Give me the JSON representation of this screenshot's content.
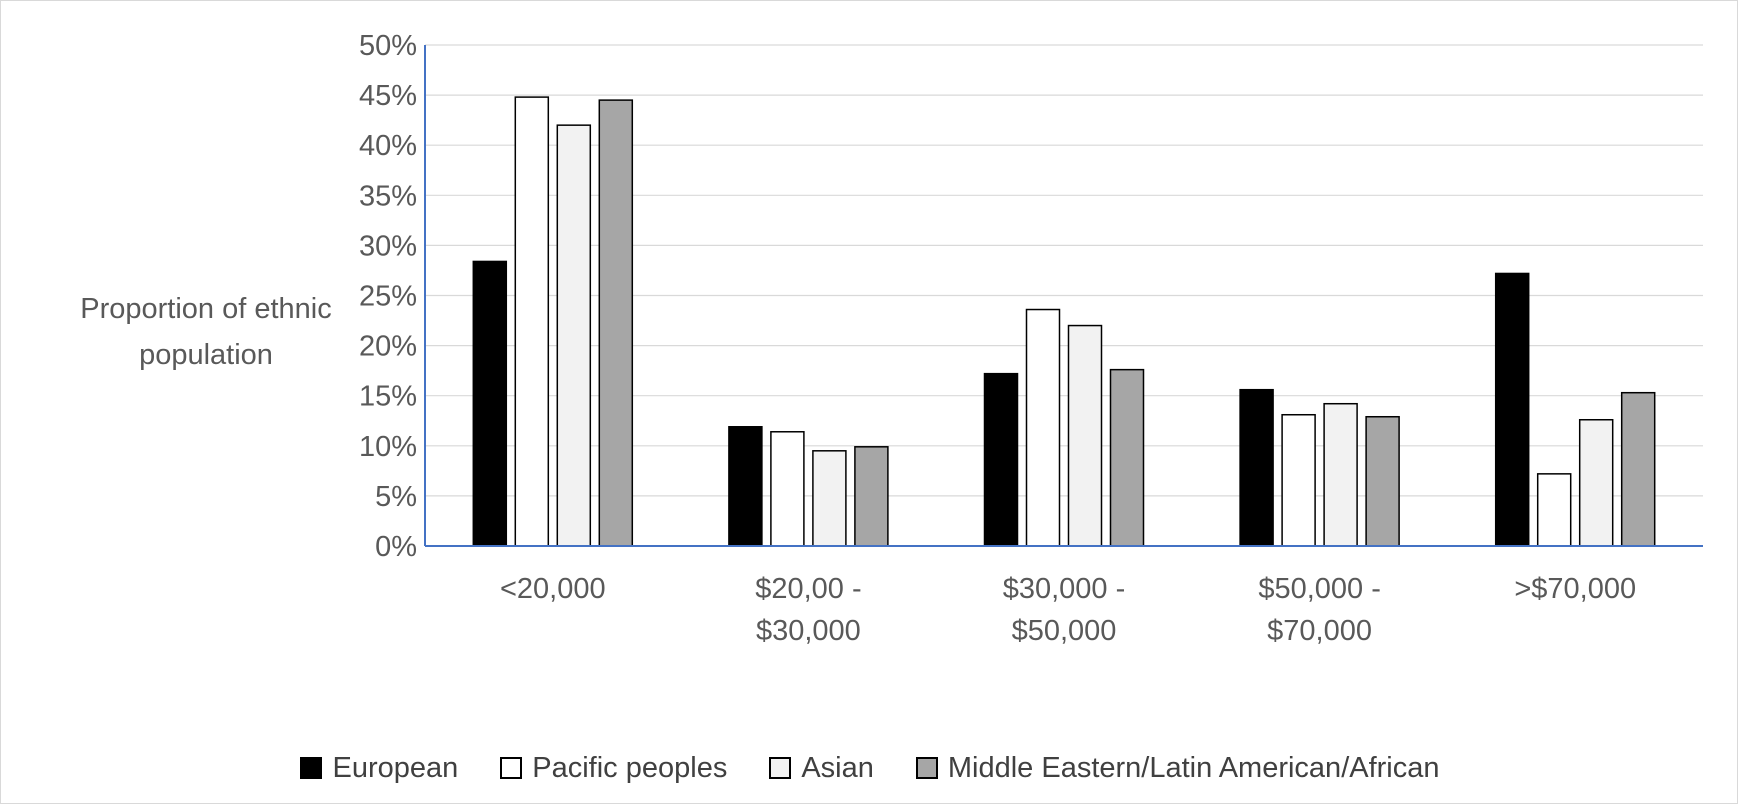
{
  "colors": {
    "European": "#000000",
    "Pacific peoples": "#ffffff",
    "Asian": "#f2f2f2",
    "Middle Eastern/Latin American/African": "#a6a6a6",
    "axis": "#4472c4",
    "grid": "#d9d9d9",
    "text": "#595959"
  },
  "chart_data": {
    "type": "bar",
    "title": "",
    "ylabel_lines": [
      "Proportion of ethnic",
      "population"
    ],
    "xlabel": "",
    "categories": [
      [
        "<20,000"
      ],
      [
        "$20,00 -",
        "$30,000"
      ],
      [
        "$30,000 -",
        "$50,000"
      ],
      [
        "$50,000 -",
        "$70,000"
      ],
      [
        ">$70,000"
      ]
    ],
    "series": [
      {
        "name": "European",
        "values": [
          28.4,
          11.9,
          17.2,
          15.6,
          27.2
        ]
      },
      {
        "name": "Pacific peoples",
        "values": [
          44.8,
          11.4,
          23.6,
          13.1,
          7.2
        ]
      },
      {
        "name": "Asian",
        "values": [
          42.0,
          9.5,
          22.0,
          14.2,
          12.6
        ]
      },
      {
        "name": "Middle Eastern/Latin American/African",
        "values": [
          44.5,
          9.9,
          17.6,
          12.9,
          15.3
        ]
      }
    ],
    "ylim": [
      0,
      50
    ],
    "yticks": [
      "0%",
      "5%",
      "10%",
      "15%",
      "20%",
      "25%",
      "30%",
      "35%",
      "40%",
      "45%",
      "50%"
    ],
    "grid": true,
    "legend_position": "bottom"
  }
}
